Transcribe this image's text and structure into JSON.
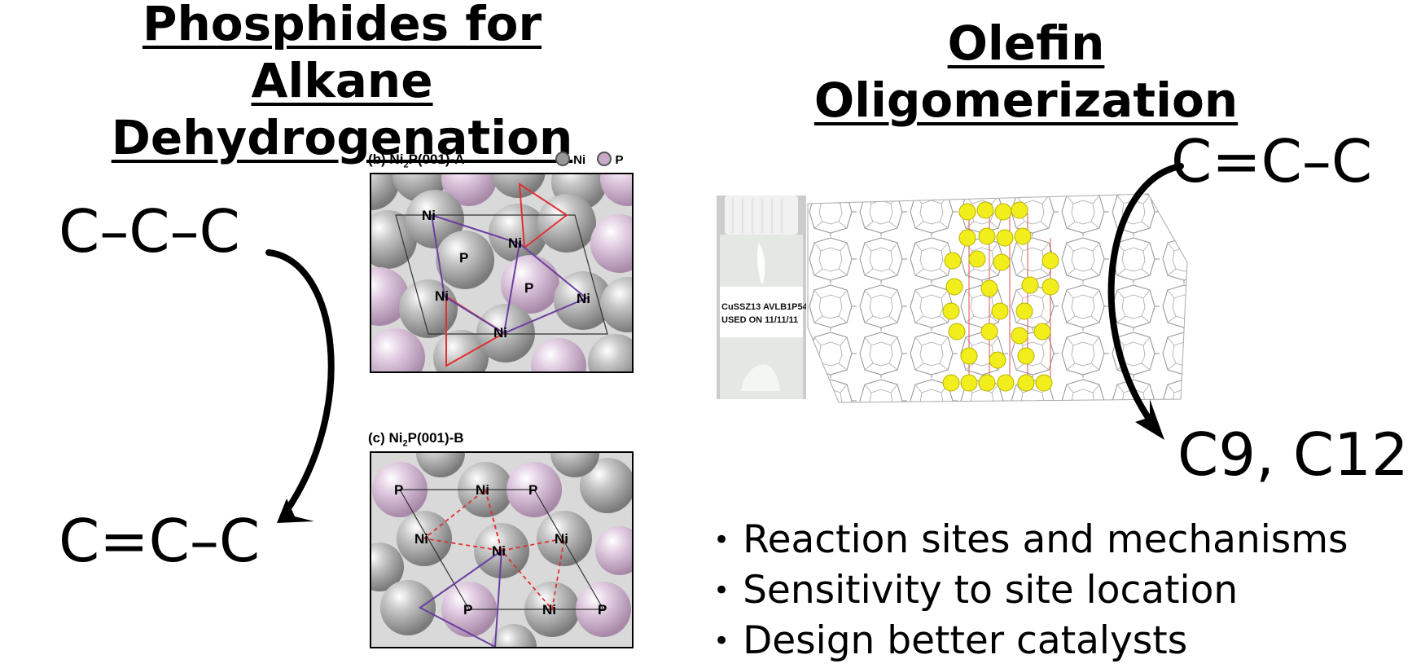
{
  "left": {
    "title_line1": "Phosphides for Alkane",
    "title_line2": "Dehydrogenation",
    "reactant": "C–C–C",
    "product": "C=C–C",
    "panel_b": {
      "label_pre": "(b) Ni",
      "label_sub": "2",
      "label_post": "P(001)-A"
    },
    "panel_c": {
      "label_pre": "(c) Ni",
      "label_sub": "2",
      "label_post": "P(001)-B"
    },
    "legend": {
      "ni": "Ni",
      "p": "P"
    },
    "atom_ni": "Ni",
    "atom_p": "P"
  },
  "right": {
    "title": "Olefin Oligomerization",
    "reactant": "C=C–C",
    "product": "C9, C12",
    "vial_label_line1": "CuSSZ13 AVLB1P54",
    "vial_label_line2": "USED ON 11/11/11",
    "bullets": [
      "Reaction sites and mechanisms",
      "Sensitivity to site location",
      "Design better catalysts"
    ]
  },
  "colors": {
    "ni_atom": "#8f8f8f",
    "p_atom": "#c9a9c9",
    "triangle_red": "#e03030",
    "cell_purple": "#6a3fa0",
    "zeolite_wire": "#9a9a9a",
    "cu_site": "#f2ee1e"
  }
}
